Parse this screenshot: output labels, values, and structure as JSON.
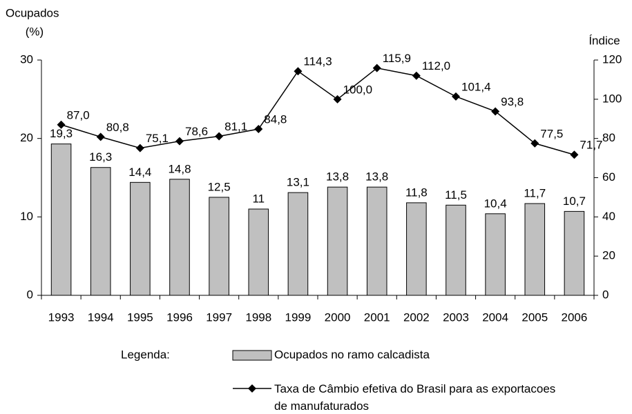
{
  "chart_data": {
    "type": "bar_line",
    "y_label": [
      "Ocupados",
      "(%)"
    ],
    "y2_label": "Índice",
    "legend_title": "Legenda:",
    "categories": [
      "1993",
      "1994",
      "1995",
      "1996",
      "1997",
      "1998",
      "1999",
      "2000",
      "2001",
      "2002",
      "2003",
      "2004",
      "2005",
      "2006"
    ],
    "series": [
      {
        "name": "Ocupados no ramo calcadista",
        "type": "bar",
        "color": "#c0c0c0",
        "values": [
          19.3,
          16.3,
          14.4,
          14.8,
          12.5,
          11,
          13.1,
          13.8,
          13.8,
          11.8,
          11.5,
          10.4,
          11.7,
          10.7
        ],
        "value_labels": [
          "19,3",
          "16,3",
          "14,4",
          "14,8",
          "12,5",
          "11",
          "13,1",
          "13,8",
          "13,8",
          "11,8",
          "11,5",
          "10,4",
          "11,7",
          "10,7"
        ]
      },
      {
        "name": "Taxa de Câmbio efetiva do Brasil para as exportacoes de manufaturados",
        "type": "line",
        "axis": "y2",
        "color": "#000000",
        "values": [
          87.0,
          80.8,
          75.1,
          78.6,
          81.1,
          84.8,
          114.3,
          100.0,
          115.9,
          112.0,
          101.4,
          93.8,
          77.5,
          71.7
        ],
        "value_labels": [
          "87,0",
          "80,8",
          "75,1",
          "78,6",
          "81,1",
          "84,8",
          "114,3",
          "100,0",
          "115,9",
          "112,0",
          "101,4",
          "93,8",
          "77,5",
          "71,7"
        ]
      }
    ],
    "ylim": [
      0,
      30
    ],
    "yticks": [
      0,
      10,
      20,
      30
    ],
    "y2lim": [
      0,
      120
    ],
    "y2ticks": [
      0,
      20,
      40,
      60,
      80,
      100,
      120
    ]
  }
}
